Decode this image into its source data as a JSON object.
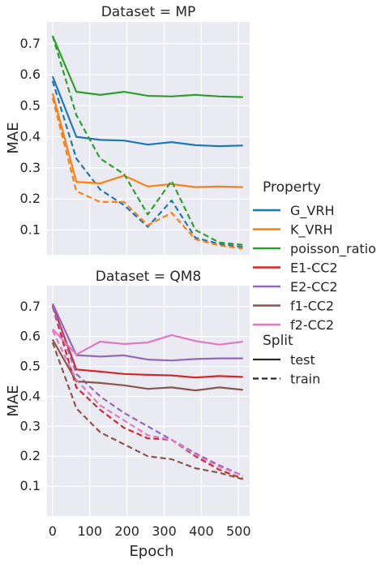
{
  "chart_data": {
    "type": "line",
    "xlabel": "Epoch",
    "ylabel": "MAE",
    "xlim": [
      -15,
      530
    ],
    "xticks": [
      0,
      100,
      200,
      300,
      400,
      500
    ],
    "grid": true,
    "legend_placement": "right",
    "panels": [
      {
        "title": "Dataset = MP",
        "ylim": [
          0.02,
          0.77
        ],
        "yticks": [
          0.1,
          0.2,
          0.3,
          0.4,
          0.5,
          0.6,
          0.7
        ],
        "series": [
          {
            "name": "G_VRH",
            "split": "test",
            "x": [
              0,
              64,
              128,
              192,
              256,
              320,
              384,
              448,
              512
            ],
            "y": [
              0.595,
              0.4,
              0.39,
              0.388,
              0.375,
              0.383,
              0.373,
              0.37,
              0.372
            ]
          },
          {
            "name": "G_VRH",
            "split": "train",
            "x": [
              0,
              64,
              128,
              192,
              256,
              320,
              384,
              448,
              512
            ],
            "y": [
              0.58,
              0.33,
              0.23,
              0.18,
              0.11,
              0.195,
              0.075,
              0.055,
              0.045
            ]
          },
          {
            "name": "K_VRH",
            "split": "test",
            "x": [
              0,
              64,
              128,
              192,
              256,
              320,
              384,
              448,
              512
            ],
            "y": [
              0.54,
              0.255,
              0.25,
              0.275,
              0.24,
              0.248,
              0.238,
              0.24,
              0.238
            ]
          },
          {
            "name": "K_VRH",
            "split": "train",
            "x": [
              0,
              64,
              128,
              192,
              256,
              320,
              384,
              448,
              512
            ],
            "y": [
              0.525,
              0.225,
              0.19,
              0.19,
              0.115,
              0.155,
              0.07,
              0.05,
              0.04
            ]
          },
          {
            "name": "poisson_ratio",
            "split": "test",
            "x": [
              0,
              64,
              128,
              192,
              256,
              320,
              384,
              448,
              512
            ],
            "y": [
              0.725,
              0.545,
              0.535,
              0.545,
              0.532,
              0.53,
              0.535,
              0.53,
              0.528
            ]
          },
          {
            "name": "poisson_ratio",
            "split": "train",
            "x": [
              0,
              64,
              128,
              192,
              256,
              320,
              384,
              448,
              512
            ],
            "y": [
              0.725,
              0.47,
              0.33,
              0.28,
              0.15,
              0.258,
              0.1,
              0.06,
              0.052
            ]
          }
        ]
      },
      {
        "title": "Dataset = QM8",
        "ylim": [
          0.0,
          0.77
        ],
        "yticks": [
          0.1,
          0.2,
          0.3,
          0.4,
          0.5,
          0.6,
          0.7
        ],
        "series": [
          {
            "name": "E1-CC2",
            "split": "test",
            "x": [
              0,
              64,
              128,
              192,
              256,
              320,
              384,
              448,
              512
            ],
            "y": [
              0.705,
              0.49,
              0.483,
              0.475,
              0.472,
              0.47,
              0.463,
              0.468,
              0.465
            ]
          },
          {
            "name": "E1-CC2",
            "split": "train",
            "x": [
              0,
              64,
              128,
              192,
              256,
              320,
              384,
              448,
              512
            ],
            "y": [
              0.7,
              0.43,
              0.355,
              0.295,
              0.26,
              0.255,
              0.2,
              0.155,
              0.125
            ]
          },
          {
            "name": "E2-CC2",
            "split": "test",
            "x": [
              0,
              64,
              128,
              192,
              256,
              320,
              384,
              448,
              512
            ],
            "y": [
              0.71,
              0.538,
              0.533,
              0.537,
              0.523,
              0.52,
              0.525,
              0.527,
              0.527
            ]
          },
          {
            "name": "E2-CC2",
            "split": "train",
            "x": [
              0,
              64,
              128,
              192,
              256,
              320,
              384,
              448,
              512
            ],
            "y": [
              0.7,
              0.475,
              0.4,
              0.345,
              0.3,
              0.255,
              0.21,
              0.17,
              0.135
            ]
          },
          {
            "name": "f1-CC2",
            "split": "test",
            "x": [
              0,
              64,
              128,
              192,
              256,
              320,
              384,
              448,
              512
            ],
            "y": [
              0.59,
              0.45,
              0.445,
              0.437,
              0.425,
              0.43,
              0.42,
              0.43,
              0.422
            ]
          },
          {
            "name": "f1-CC2",
            "split": "train",
            "x": [
              0,
              64,
              128,
              192,
              256,
              320,
              384,
              448,
              512
            ],
            "y": [
              0.58,
              0.36,
              0.28,
              0.24,
              0.2,
              0.19,
              0.16,
              0.145,
              0.123
            ]
          },
          {
            "name": "f2-CC2",
            "split": "test",
            "x": [
              0,
              64,
              128,
              192,
              256,
              320,
              384,
              448,
              512
            ],
            "y": [
              0.625,
              0.54,
              0.583,
              0.575,
              0.58,
              0.605,
              0.585,
              0.573,
              0.583
            ]
          },
          {
            "name": "f2-CC2",
            "split": "train",
            "x": [
              0,
              64,
              128,
              192,
              256,
              320,
              384,
              448,
              512
            ],
            "y": [
              0.62,
              0.455,
              0.37,
              0.32,
              0.27,
              0.255,
              0.205,
              0.165,
              0.135
            ]
          }
        ]
      }
    ],
    "colors": {
      "G_VRH": "#1f77b4",
      "K_VRH": "#ff7f0e",
      "poisson_ratio": "#2ca02c",
      "E1-CC2": "#d62728",
      "E2-CC2": "#9467bd",
      "f1-CC2": "#8c564b",
      "f2-CC2": "#e377c2"
    },
    "legend": {
      "property_title": "Property",
      "properties": [
        "G_VRH",
        "K_VRH",
        "poisson_ratio",
        "E1-CC2",
        "E2-CC2",
        "f1-CC2",
        "f2-CC2"
      ],
      "split_title": "Split",
      "splits": [
        {
          "label": "test",
          "dash": "solid"
        },
        {
          "label": "train",
          "dash": "dashed"
        }
      ]
    }
  }
}
